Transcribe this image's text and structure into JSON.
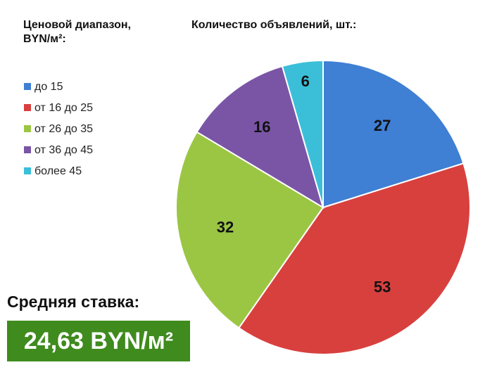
{
  "chart_data": {
    "type": "pie",
    "title": "Количество объявлений, шт.:",
    "legend_title": "Ценовой диапазон, BYN/м²:",
    "categories": [
      "до 15",
      "от 16 до 25",
      "от 26 до 35",
      "от 36 до 45",
      "более 45"
    ],
    "values": [
      27,
      53,
      32,
      16,
      6
    ],
    "colors": [
      "#3f7fd4",
      "#d8403e",
      "#9bc644",
      "#7a55a6",
      "#3bbfd9"
    ],
    "annotation_label": "Средняя ставка:",
    "annotation_value": "24,63 BYN/м²"
  }
}
